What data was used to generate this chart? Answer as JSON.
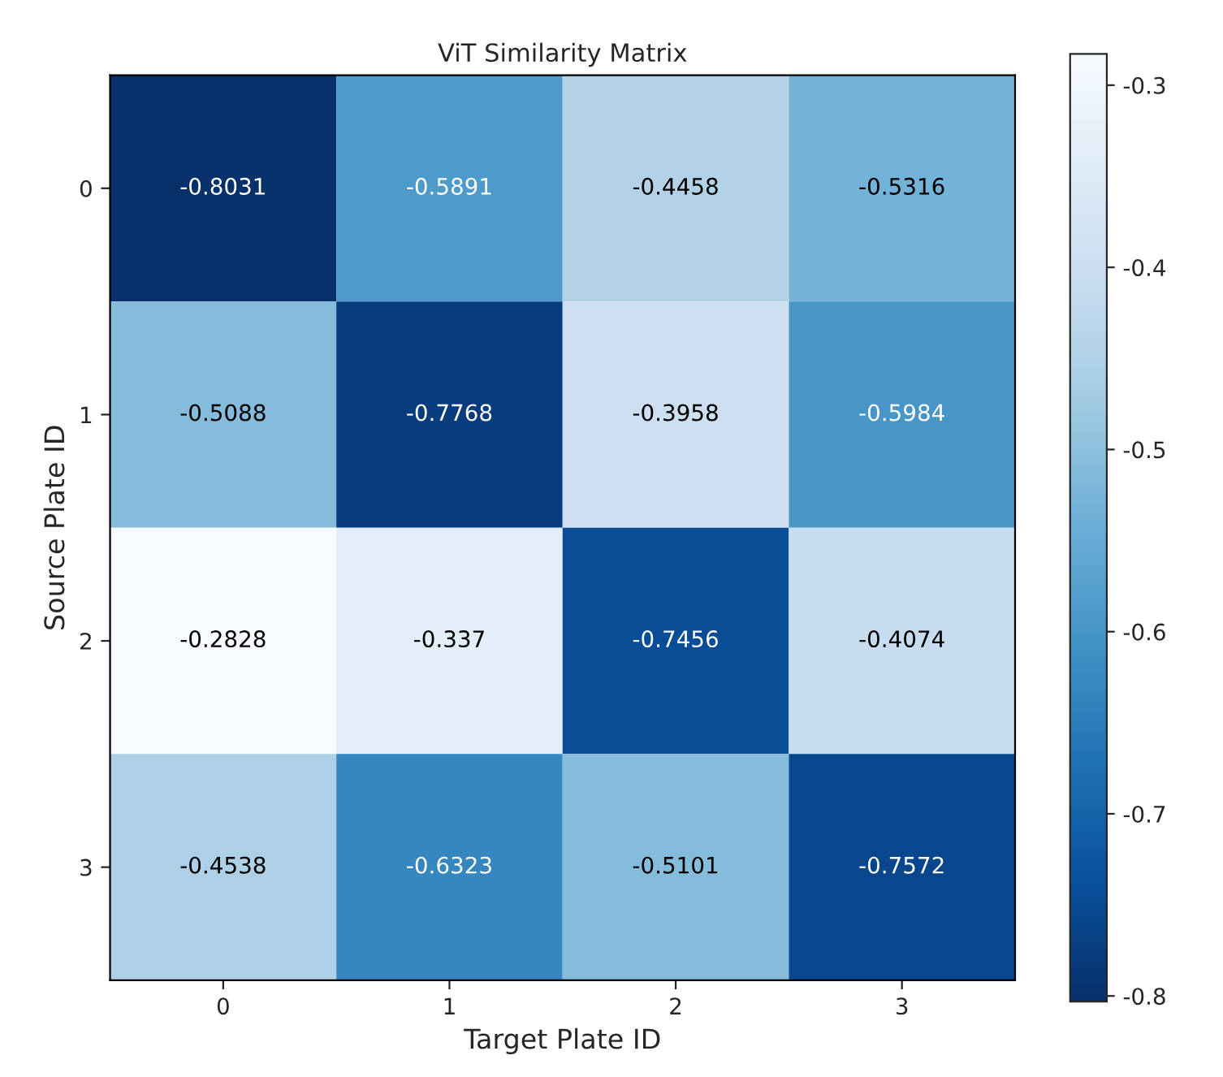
{
  "chart_data": {
    "type": "heatmap",
    "title": "ViT Similarity Matrix",
    "xlabel": "Target Plate ID",
    "ylabel": "Source Plate ID",
    "categories": [
      "0",
      "1",
      "2",
      "3"
    ],
    "y_categories": [
      "0",
      "1",
      "2",
      "3"
    ],
    "cells": [
      [
        -0.8031,
        -0.5891,
        -0.4458,
        -0.5316
      ],
      [
        -0.5088,
        -0.7768,
        -0.3958,
        -0.5984
      ],
      [
        -0.2828,
        -0.337,
        -0.7456,
        -0.4074
      ],
      [
        -0.4538,
        -0.6323,
        -0.5101,
        -0.7572
      ]
    ],
    "clim": [
      -0.8031,
      -0.2828
    ],
    "cticks": [
      -0.3,
      -0.4,
      -0.5,
      -0.6,
      -0.7,
      -0.8
    ],
    "data_labels": true
  }
}
